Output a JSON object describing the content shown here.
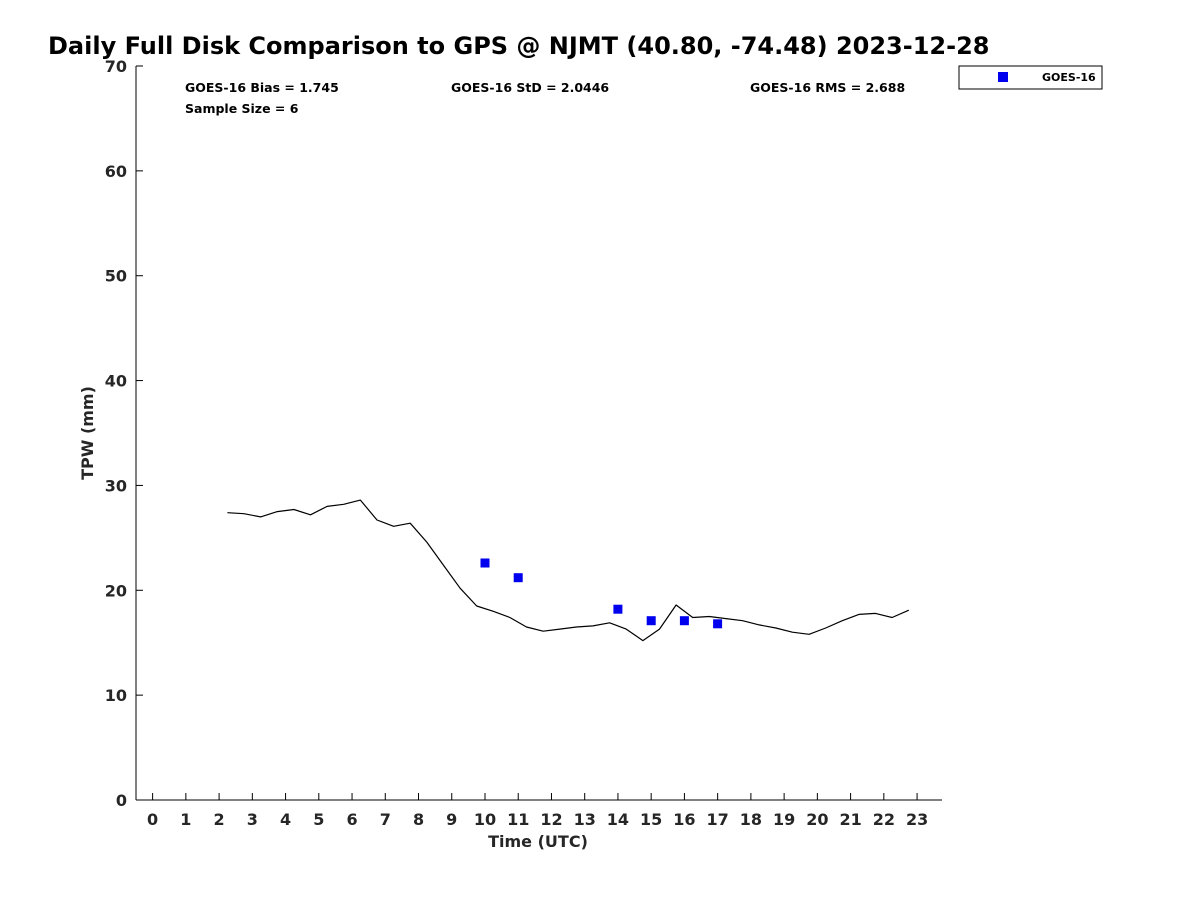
{
  "chart_data": {
    "type": "line",
    "title": "Daily Full Disk Comparison to GPS @ NJMT (40.80, -74.48) 2023-12-28",
    "xlabel": "Time (UTC)",
    "ylabel": "TPW (mm)",
    "xlim": [
      -0.5,
      23.75
    ],
    "ylim": [
      0,
      70
    ],
    "xticks": [
      "0",
      "1",
      "2",
      "3",
      "4",
      "5",
      "6",
      "7",
      "8",
      "9",
      "10",
      "11",
      "12",
      "13",
      "14",
      "15",
      "16",
      "17",
      "18",
      "19",
      "20",
      "21",
      "22",
      "23"
    ],
    "yticks": [
      "0",
      "10",
      "20",
      "30",
      "40",
      "50",
      "60",
      "70"
    ],
    "grid": false,
    "legend_position": "top-right, outside plot",
    "stats": {
      "bias": "GOES-16 Bias = 1.745",
      "std": "GOES-16 StD = 2.0446",
      "rms": "GOES-16 RMS = 2.688",
      "sample": "Sample Size = 6"
    },
    "series": [
      {
        "style": "line",
        "color": "#000000",
        "x": [
          2.25,
          2.75,
          3.25,
          3.75,
          4.25,
          4.75,
          5.25,
          5.75,
          6.25,
          6.75,
          7.25,
          7.75,
          8.25,
          8.75,
          9.25,
          9.75,
          10.25,
          10.75,
          11.25,
          11.75,
          12.25,
          12.75,
          13.25,
          13.75,
          14.25,
          14.75,
          15.25,
          15.75,
          16.25,
          16.75,
          17.25,
          17.75,
          18.25,
          18.75,
          19.25,
          19.75,
          20.25,
          20.75,
          21.25,
          21.75,
          22.25,
          22.75
        ],
        "y": [
          27.4,
          27.3,
          27.0,
          27.5,
          27.7,
          27.2,
          28.0,
          28.2,
          28.6,
          26.7,
          26.1,
          26.4,
          24.6,
          22.4,
          20.2,
          18.5,
          18.0,
          17.4,
          16.5,
          16.1,
          16.3,
          16.5,
          16.6,
          16.9,
          16.3,
          15.2,
          16.3,
          18.6,
          17.4,
          17.5,
          17.3,
          17.1,
          16.7,
          16.4,
          16.0,
          15.8,
          16.4,
          17.1,
          17.7,
          17.8,
          17.4,
          18.1
        ]
      },
      {
        "name": "GOES-16",
        "style": "marker",
        "marker": "square",
        "color": "#0000ee",
        "x": [
          10,
          11,
          14,
          15,
          16,
          17
        ],
        "y": [
          22.6,
          21.2,
          18.2,
          17.1,
          17.1,
          16.8
        ]
      }
    ]
  }
}
